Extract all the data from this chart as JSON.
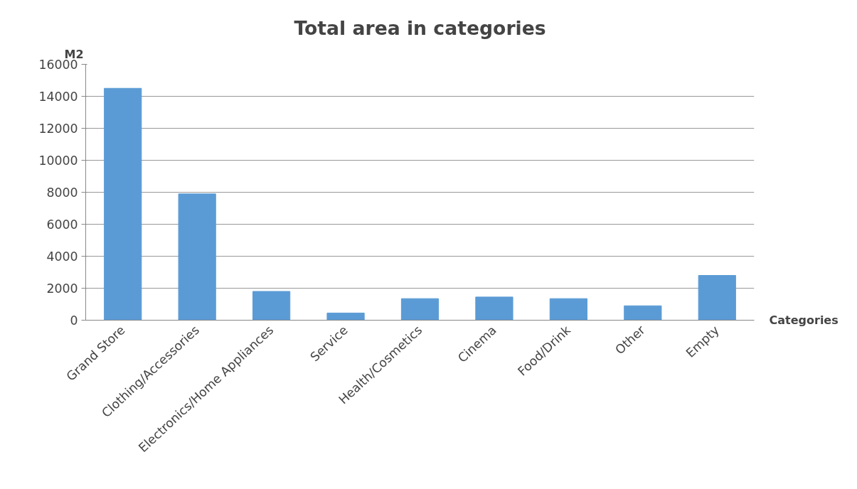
{
  "chart_data": {
    "type": "bar",
    "title": "Total area in categories",
    "ylabel": "M2",
    "xlabel": "Categories",
    "categories": [
      "Grand Store",
      "Clothing/Accessories",
      "Electronics/Home Appliances",
      "Service",
      "Health/Cosmetics",
      "Cinema",
      "Food/Drink",
      "Other",
      "Empty"
    ],
    "values": [
      14500,
      7900,
      1800,
      450,
      1350,
      1450,
      1350,
      900,
      2800
    ],
    "color": "#5b9bd5",
    "ylim": [
      0,
      16000
    ],
    "yticks": [
      0,
      2000,
      4000,
      6000,
      8000,
      10000,
      12000,
      14000,
      16000
    ],
    "grid": "y",
    "legend": false
  }
}
